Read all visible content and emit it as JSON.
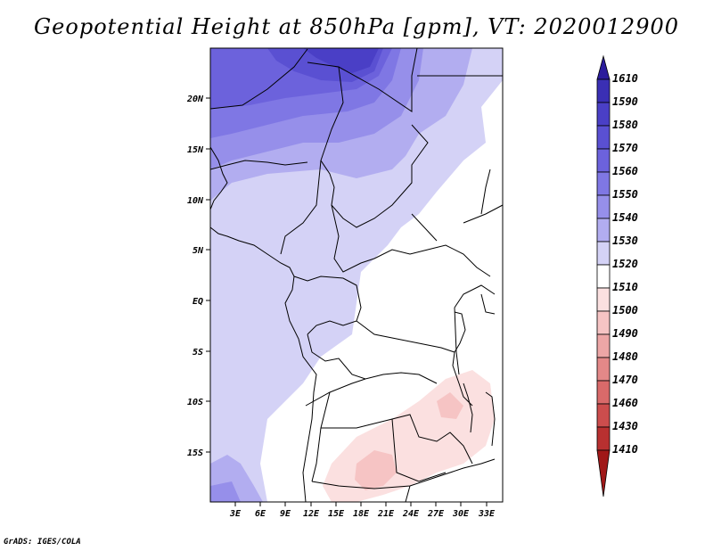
{
  "title": "Geopotential Height at 850hPa [gpm], VT: 2020012900",
  "credit": "GrADS: IGES/COLA",
  "map": {
    "lon_range": [
      0,
      35
    ],
    "lat_range": [
      -20,
      25
    ],
    "y_ticks": [
      "20N",
      "15N",
      "10N",
      "5N",
      "EQ",
      "5S",
      "10S",
      "15S"
    ],
    "x_ticks": [
      "3E",
      "6E",
      "9E",
      "12E",
      "15E",
      "18E",
      "21E",
      "24E",
      "27E",
      "30E",
      "33E"
    ]
  },
  "colorbar": {
    "labels": [
      "1610",
      "1590",
      "1580",
      "1570",
      "1560",
      "1550",
      "1540",
      "1530",
      "1520",
      "1510",
      "1500",
      "1490",
      "1480",
      "1470",
      "1460",
      "1430",
      "1410"
    ],
    "colors": [
      "#2b1c9c",
      "#3a2fb4",
      "#4a3fc6",
      "#5a50d2",
      "#6c62dc",
      "#7f77e4",
      "#968fea",
      "#b2adf0",
      "#d4d2f6",
      "#ffffff",
      "#fbe0e0",
      "#f6c4c4",
      "#eda6a6",
      "#e38888",
      "#d96a6a",
      "#cc4d4d",
      "#b83030",
      "#a01818"
    ]
  }
}
